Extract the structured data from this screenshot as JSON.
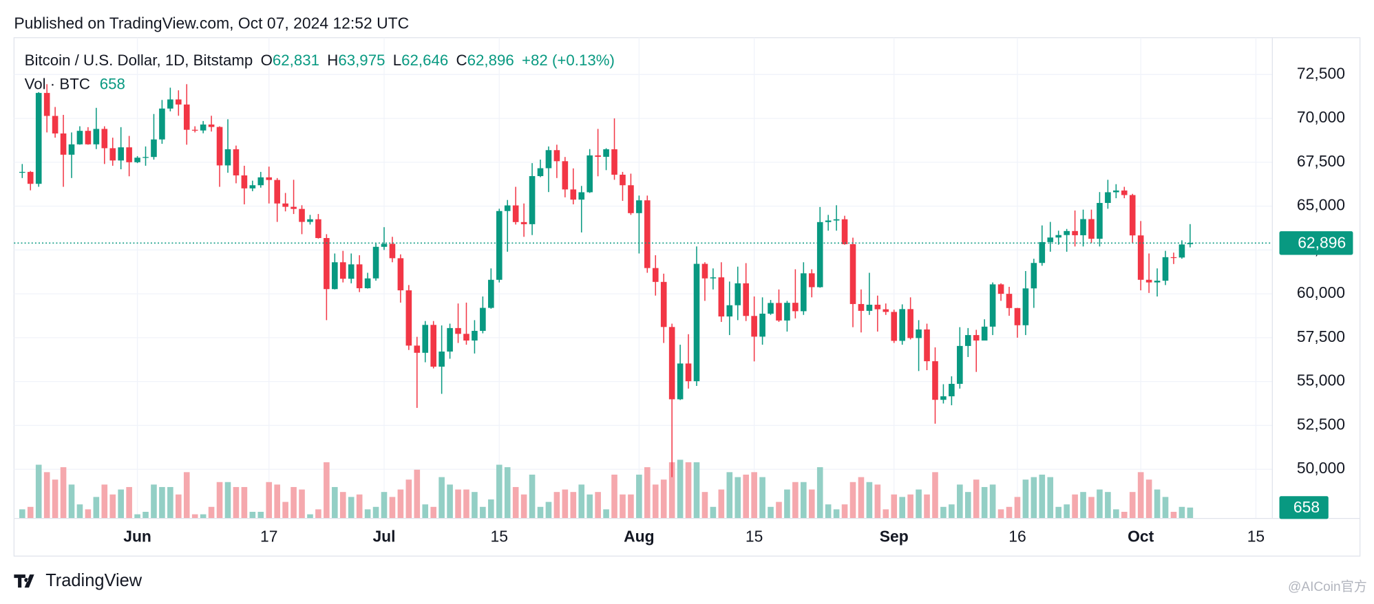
{
  "header": {
    "published": "Published on TradingView.com, Oct 07, 2024 12:52 UTC"
  },
  "chart_data": {
    "type": "candlestick",
    "legend": {
      "symbol": "Bitcoin / U.S. Dollar, 1D, Bitstamp",
      "fields": [
        {
          "key": "O",
          "label": "62,831"
        },
        {
          "key": "H",
          "label": "63,975"
        },
        {
          "key": "L",
          "label": "62,646"
        },
        {
          "key": "C",
          "label": "62,896"
        }
      ],
      "change": "+82 (+0.13%)",
      "volume_title": "Vol · BTC"
    },
    "up_color": "#089981",
    "down_color": "#f23645",
    "volume_up_color": "#93cfc5",
    "volume_down_color": "#f5a8ad",
    "grid": true,
    "price_line": true,
    "x": [
      "2024-05-18",
      "2024-05-19",
      "2024-05-20",
      "2024-05-21",
      "2024-05-22",
      "2024-05-23",
      "2024-05-24",
      "2024-05-25",
      "2024-05-26",
      "2024-05-27",
      "2024-05-28",
      "2024-05-29",
      "2024-05-30",
      "2024-05-31",
      "2024-06-01",
      "2024-06-02",
      "2024-06-03",
      "2024-06-04",
      "2024-06-05",
      "2024-06-06",
      "2024-06-07",
      "2024-06-08",
      "2024-06-09",
      "2024-06-10",
      "2024-06-11",
      "2024-06-12",
      "2024-06-13",
      "2024-06-14",
      "2024-06-15",
      "2024-06-16",
      "2024-06-17",
      "2024-06-18",
      "2024-06-19",
      "2024-06-20",
      "2024-06-21",
      "2024-06-22",
      "2024-06-23",
      "2024-06-24",
      "2024-06-25",
      "2024-06-26",
      "2024-06-27",
      "2024-06-28",
      "2024-06-29",
      "2024-06-30",
      "2024-07-01",
      "2024-07-02",
      "2024-07-03",
      "2024-07-04",
      "2024-07-05",
      "2024-07-06",
      "2024-07-07",
      "2024-07-08",
      "2024-07-09",
      "2024-07-10",
      "2024-07-11",
      "2024-07-12",
      "2024-07-13",
      "2024-07-14",
      "2024-07-15",
      "2024-07-16",
      "2024-07-17",
      "2024-07-18",
      "2024-07-19",
      "2024-07-20",
      "2024-07-21",
      "2024-07-22",
      "2024-07-23",
      "2024-07-24",
      "2024-07-25",
      "2024-07-26",
      "2024-07-27",
      "2024-07-28",
      "2024-07-29",
      "2024-07-30",
      "2024-07-31",
      "2024-08-01",
      "2024-08-02",
      "2024-08-03",
      "2024-08-04",
      "2024-08-05",
      "2024-08-06",
      "2024-08-07",
      "2024-08-08",
      "2024-08-09",
      "2024-08-10",
      "2024-08-11",
      "2024-08-12",
      "2024-08-13",
      "2024-08-14",
      "2024-08-15",
      "2024-08-16",
      "2024-08-17",
      "2024-08-18",
      "2024-08-19",
      "2024-08-20",
      "2024-08-21",
      "2024-08-22",
      "2024-08-23",
      "2024-08-24",
      "2024-08-25",
      "2024-08-26",
      "2024-08-27",
      "2024-08-28",
      "2024-08-29",
      "2024-08-30",
      "2024-08-31",
      "2024-09-01",
      "2024-09-02",
      "2024-09-03",
      "2024-09-04",
      "2024-09-05",
      "2024-09-06",
      "2024-09-07",
      "2024-09-08",
      "2024-09-09",
      "2024-09-10",
      "2024-09-11",
      "2024-09-12",
      "2024-09-13",
      "2024-09-14",
      "2024-09-15",
      "2024-09-16",
      "2024-09-17",
      "2024-09-18",
      "2024-09-19",
      "2024-09-20",
      "2024-09-21",
      "2024-09-22",
      "2024-09-23",
      "2024-09-24",
      "2024-09-25",
      "2024-09-26",
      "2024-09-27",
      "2024-09-28",
      "2024-09-29",
      "2024-09-30",
      "2024-10-01",
      "2024-10-02",
      "2024-10-03",
      "2024-10-04",
      "2024-10-05",
      "2024-10-06",
      "2024-10-07"
    ],
    "open": [
      66900,
      66950,
      66270,
      71450,
      70140,
      69140,
      67930,
      68520,
      69290,
      68520,
      69400,
      68300,
      67600,
      68350,
      67500,
      67760,
      67800,
      68800,
      70560,
      71080,
      70790,
      69350,
      69310,
      69650,
      69510,
      67320,
      68240,
      66750,
      66010,
      66190,
      66640,
      66490,
      65150,
      64960,
      64840,
      64100,
      64250,
      63180,
      60270,
      61800,
      60860,
      61680,
      60320,
      60880,
      62680,
      62850,
      62030,
      60200,
      57050,
      56640,
      58230,
      55850,
      56710,
      58050,
      57720,
      57340,
      57890,
      59200,
      60800,
      64720,
      65040,
      64090,
      63970,
      66710,
      67160,
      68190,
      67560,
      65950,
      65370,
      65790,
      67890,
      67810,
      68240,
      66790,
      66190,
      64600,
      65330,
      61470,
      60680,
      58110,
      53990,
      56030,
      55020,
      61710,
      60880,
      60940,
      58710,
      59350,
      60600,
      58740,
      57560,
      58870,
      59480,
      58480,
      59490,
      59010,
      61170,
      60380,
      64090,
      64180,
      64250,
      62830,
      59420,
      59030,
      59380,
      59120,
      58970,
      57320,
      59130,
      57480,
      57970,
      56160,
      53960,
      54160,
      54870,
      57030,
      57650,
      57340,
      58130,
      60540,
      60000,
      59190,
      58210,
      60310,
      61760,
      62950,
      63210,
      63350,
      63580,
      63340,
      64260,
      63140,
      65180,
      65790,
      65890,
      65630,
      63330,
      60800,
      60650,
      60750,
      62090,
      62070,
      62831
    ],
    "high": [
      67400,
      67000,
      71500,
      71950,
      70650,
      70200,
      69200,
      69550,
      69500,
      70600,
      69550,
      68900,
      69500,
      69000,
      67850,
      68400,
      70250,
      71050,
      71750,
      71600,
      71950,
      69550,
      69850,
      70150,
      69550,
      69950,
      68450,
      67300,
      66450,
      66950,
      67250,
      66600,
      65750,
      66500,
      65050,
      64500,
      64550,
      63400,
      62300,
      62450,
      62300,
      62200,
      61200,
      62900,
      63800,
      63250,
      62250,
      60500,
      57550,
      58450,
      58450,
      58200,
      58300,
      59450,
      59500,
      58500,
      59850,
      61450,
      64850,
      65350,
      66100,
      65150,
      67450,
      67650,
      68400,
      68500,
      67800,
      67150,
      66150,
      68250,
      69400,
      68300,
      70000,
      66950,
      66850,
      65600,
      65600,
      62200,
      61150,
      58300,
      57100,
      57700,
      62700,
      61800,
      61450,
      61800,
      60700,
      61550,
      61750,
      59850,
      59800,
      59650,
      60250,
      59600,
      61400,
      61800,
      61400,
      64950,
      64500,
      65050,
      64450,
      63200,
      60250,
      61200,
      59900,
      59450,
      59100,
      59400,
      59800,
      58500,
      58300,
      56950,
      54850,
      55300,
      58100,
      58050,
      57950,
      58550,
      60650,
      60600,
      60400,
      59200,
      61300,
      62000,
      63900,
      64100,
      63600,
      63700,
      64750,
      64800,
      64800,
      65800,
      66500,
      66250,
      66100,
      65700,
      64150,
      62300,
      61450,
      62450,
      62350,
      63050,
      63975
    ],
    "low": [
      66600,
      65900,
      66100,
      69200,
      68900,
      66100,
      66600,
      68500,
      68500,
      68250,
      67400,
      67300,
      67100,
      66700,
      67450,
      67300,
      67650,
      68550,
      70400,
      70150,
      68500,
      69200,
      69150,
      69250,
      66100,
      66900,
      66300,
      65100,
      65850,
      66050,
      65150,
      64100,
      64700,
      64550,
      63400,
      63950,
      63150,
      58500,
      60250,
      60650,
      60600,
      60100,
      60300,
      60750,
      62500,
      61800,
      59500,
      56800,
      53500,
      56100,
      55750,
      54300,
      56300,
      57200,
      57100,
      56600,
      57750,
      59150,
      60650,
      62400,
      63950,
      63250,
      63350,
      66650,
      65800,
      66600,
      65500,
      65100,
      63500,
      65750,
      66700,
      67050,
      66500,
      65300,
      64500,
      62300,
      61200,
      59900,
      57200,
      49550,
      53950,
      54600,
      54750,
      59600,
      60250,
      58400,
      57650,
      58500,
      58450,
      56150,
      57100,
      58800,
      58400,
      57850,
      58600,
      58800,
      59800,
      60350,
      63600,
      63600,
      62800,
      58100,
      57800,
      58800,
      57850,
      58800,
      57200,
      57100,
      57400,
      55600,
      55650,
      52600,
      53750,
      53650,
      54600,
      56400,
      55550,
      57350,
      57650,
      59600,
      58750,
      57500,
      57650,
      59200,
      61600,
      62400,
      62800,
      62400,
      62700,
      62700,
      62900,
      62700,
      64850,
      65450,
      65450,
      62900,
      60200,
      60050,
      59850,
      60500,
      61700,
      62000,
      62646
    ],
    "close": [
      66950,
      66270,
      71450,
      70140,
      69140,
      67930,
      68520,
      69290,
      68520,
      69400,
      68300,
      67600,
      68350,
      67500,
      67760,
      67800,
      68800,
      70560,
      71080,
      70790,
      69350,
      69310,
      69650,
      69510,
      67320,
      68240,
      66750,
      66010,
      66190,
      66640,
      66490,
      65150,
      64960,
      64840,
      64100,
      64250,
      63180,
      60270,
      61800,
      60860,
      61680,
      60320,
      60880,
      62680,
      62850,
      62030,
      60200,
      57050,
      56640,
      58230,
      55850,
      56710,
      58050,
      57720,
      57340,
      57890,
      59200,
      60800,
      64720,
      65040,
      64090,
      63970,
      66710,
      67160,
      68190,
      67560,
      65950,
      65370,
      65790,
      67890,
      67810,
      68240,
      66790,
      66190,
      64600,
      65330,
      61470,
      60680,
      58110,
      53990,
      56030,
      55020,
      61710,
      60880,
      60940,
      58710,
      59350,
      60600,
      58740,
      57560,
      58870,
      59480,
      58480,
      59490,
      59010,
      61170,
      60380,
      64090,
      64180,
      64250,
      62830,
      59420,
      59030,
      59380,
      59120,
      58970,
      57320,
      59130,
      57480,
      57970,
      56160,
      53960,
      54160,
      54870,
      57030,
      57650,
      57340,
      58130,
      60540,
      60000,
      59190,
      58210,
      60310,
      61760,
      62950,
      63210,
      63350,
      63580,
      63340,
      64260,
      63140,
      65180,
      65790,
      65890,
      65630,
      63330,
      60800,
      60650,
      60750,
      62090,
      62070,
      62814,
      62896
    ],
    "volume": [
      550,
      700,
      3250,
      2800,
      2350,
      3100,
      2050,
      850,
      550,
      1300,
      2050,
      1450,
      1750,
      1900,
      250,
      400,
      2050,
      1900,
      1900,
      1450,
      2800,
      250,
      250,
      700,
      2200,
      2200,
      1900,
      1900,
      400,
      400,
      2200,
      2050,
      1000,
      1900,
      1750,
      250,
      550,
      3400,
      1900,
      1600,
      1300,
      1450,
      550,
      700,
      1600,
      1300,
      1750,
      2350,
      2950,
      850,
      700,
      2500,
      2050,
      1750,
      1750,
      1600,
      700,
      1150,
      3250,
      3100,
      1900,
      1450,
      2650,
      700,
      1000,
      1600,
      1750,
      1600,
      2050,
      1450,
      1600,
      550,
      2650,
      1450,
      1450,
      2650,
      3100,
      2050,
      2350,
      3400,
      3550,
      3400,
      3400,
      1600,
      700,
      1750,
      2800,
      2500,
      2650,
      2800,
      2500,
      700,
      1000,
      1750,
      2200,
      2200,
      1750,
      3100,
      850,
      550,
      850,
      2200,
      2500,
      2200,
      2050,
      550,
      1450,
      1300,
      1450,
      1750,
      1450,
      2800,
      700,
      850,
      2050,
      1600,
      2350,
      1900,
      2050,
      550,
      700,
      1300,
      2350,
      2500,
      2650,
      2500,
      700,
      850,
      1450,
      1600,
      1300,
      1750,
      1600,
      550,
      400,
      1600,
      2800,
      2350,
      1750,
      1300,
      400,
      700,
      658
    ],
    "xlim": [
      "2024-05-17",
      "2024-10-17"
    ],
    "xticks": [
      {
        "value": "2024-06-01",
        "label": "Jun"
      },
      {
        "value": "2024-06-17",
        "label": "17"
      },
      {
        "value": "2024-07-01",
        "label": "Jul"
      },
      {
        "value": "2024-07-15",
        "label": "15"
      },
      {
        "value": "2024-08-01",
        "label": "Aug"
      },
      {
        "value": "2024-08-15",
        "label": "15"
      },
      {
        "value": "2024-09-01",
        "label": "Sep"
      },
      {
        "value": "2024-09-16",
        "label": "16"
      },
      {
        "value": "2024-10-01",
        "label": "Oct"
      },
      {
        "value": "2024-10-15",
        "label": "15"
      }
    ],
    "ylim": [
      47200,
      74600
    ],
    "yticks": [
      {
        "value": 50000,
        "label": "50,000"
      },
      {
        "value": 52500,
        "label": "52,500"
      },
      {
        "value": 55000,
        "label": "55,000"
      },
      {
        "value": 57500,
        "label": "57,500"
      },
      {
        "value": 60000,
        "label": "60,000"
      },
      {
        "value": 62500,
        "label": "62,500"
      },
      {
        "value": 65000,
        "label": "65,000"
      },
      {
        "value": 67500,
        "label": "67,500"
      },
      {
        "value": 70000,
        "label": "70,000"
      },
      {
        "value": 72500,
        "label": "72,500"
      }
    ]
  },
  "footer": {
    "brand": "TradingView",
    "watermark": "@AICoin官方"
  }
}
